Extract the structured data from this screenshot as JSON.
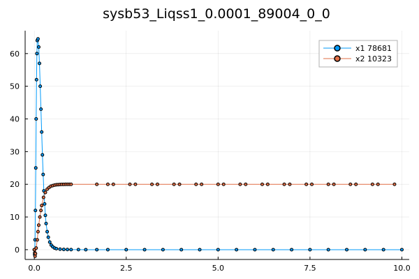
{
  "chart_data": {
    "type": "line",
    "title": "sysb53_Liqss1_0.0001_89004_0_0",
    "xlabel": "",
    "ylabel": "",
    "xlim": [
      -0.25,
      10.2
    ],
    "ylim": [
      -3,
      67
    ],
    "xticks": [
      0.0,
      2.5,
      5.0,
      7.5,
      10.0
    ],
    "xtick_labels": [
      "0.0",
      "2.5",
      "5.0",
      "7.5",
      "10.0"
    ],
    "yticks": [
      0,
      10,
      20,
      30,
      40,
      50,
      60
    ],
    "ytick_labels": [
      "0",
      "10",
      "20",
      "30",
      "40",
      "50",
      "60"
    ],
    "grid": true,
    "legend_position": "top-right",
    "series": [
      {
        "name": "x1 78681",
        "color": "#009AFA",
        "x": [
          0.0,
          0.01,
          0.02,
          0.03,
          0.04,
          0.05,
          0.06,
          0.07,
          0.08,
          0.1,
          0.12,
          0.14,
          0.16,
          0.18,
          0.2,
          0.22,
          0.24,
          0.26,
          0.28,
          0.3,
          0.32,
          0.35,
          0.38,
          0.42,
          0.46,
          0.5,
          0.55,
          0.6,
          0.7,
          0.8,
          0.9,
          1.0,
          1.2,
          1.4,
          1.7,
          2.0,
          2.5,
          3.0,
          3.5,
          4.0,
          4.5,
          5.0,
          5.5,
          6.0,
          6.5,
          7.0,
          7.5,
          8.0,
          8.5,
          9.0,
          9.5,
          10.0
        ],
        "y": [
          0.0,
          -1.5,
          3.0,
          12.0,
          25.0,
          40.0,
          52.0,
          60.0,
          64.0,
          64.5,
          62.0,
          57.0,
          50.0,
          43.0,
          36.0,
          29.0,
          23.0,
          18.0,
          14.0,
          10.5,
          8.0,
          5.5,
          3.8,
          2.3,
          1.4,
          0.9,
          0.5,
          0.3,
          0.15,
          0.08,
          0.04,
          0.02,
          0.01,
          0.0,
          0.0,
          0.0,
          0.0,
          0.0,
          0.0,
          0.0,
          0.0,
          0.0,
          0.0,
          0.0,
          0.0,
          0.0,
          0.0,
          0.0,
          0.0,
          0.0,
          0.0,
          0.0
        ]
      },
      {
        "name": "x2 10323",
        "color": "#E26F46",
        "x": [
          0.0,
          0.01,
          0.02,
          0.03,
          0.05,
          0.08,
          0.1,
          0.12,
          0.15,
          0.18,
          0.2,
          0.25,
          0.3,
          0.35,
          0.4,
          0.45,
          0.5,
          0.55,
          0.6,
          0.65,
          0.7,
          0.75,
          0.8,
          0.85,
          0.9,
          0.95,
          1.0,
          1.7,
          2.0,
          2.15,
          2.6,
          2.75,
          3.2,
          3.35,
          3.8,
          3.95,
          4.4,
          4.55,
          5.0,
          5.15,
          5.6,
          5.75,
          6.2,
          6.35,
          6.8,
          6.95,
          7.4,
          7.55,
          8.0,
          8.15,
          8.6,
          8.75,
          9.2,
          9.35,
          9.8
        ],
        "y": [
          0.0,
          -1.0,
          -2.0,
          -1.2,
          0.5,
          3.0,
          5.5,
          7.5,
          10.0,
          12.0,
          13.5,
          16.0,
          17.5,
          18.5,
          19.0,
          19.4,
          19.6,
          19.75,
          19.85,
          19.9,
          19.95,
          19.97,
          19.98,
          19.99,
          20.0,
          20.0,
          20.0,
          20.0,
          20.0,
          20.0,
          20.0,
          20.0,
          20.0,
          20.0,
          20.0,
          20.0,
          20.0,
          20.0,
          20.0,
          20.0,
          20.0,
          20.0,
          20.0,
          20.0,
          20.0,
          20.0,
          20.0,
          20.0,
          20.0,
          20.0,
          20.0,
          20.0,
          20.0,
          20.0,
          20.0
        ]
      }
    ]
  }
}
